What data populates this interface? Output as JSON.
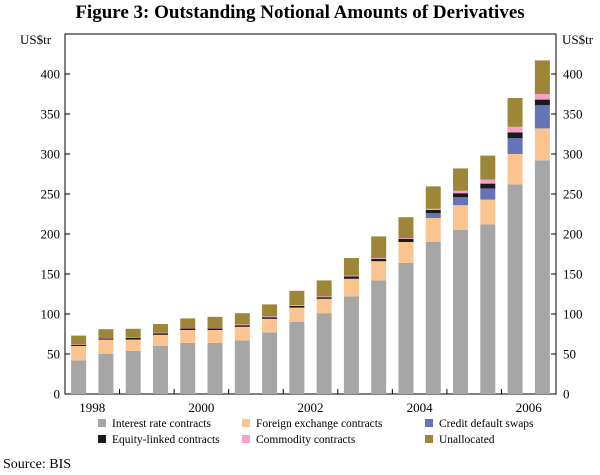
{
  "chart_data": {
    "type": "bar",
    "stacked": true,
    "title": "Figure 3: Outstanding Notional Amounts of Derivatives",
    "ylabel_left": "US$tr",
    "ylabel_right": "US$tr",
    "ylim": [
      0,
      450
    ],
    "yticks": [
      0,
      50,
      100,
      150,
      200,
      250,
      300,
      350,
      400
    ],
    "x_tick_labels": [
      "1998",
      "2000",
      "2002",
      "2004",
      "2006"
    ],
    "periods": [
      "1998 H1",
      "1998 H2",
      "1999 H1",
      "1999 H2",
      "2000 H1",
      "2000 H2",
      "2001 H1",
      "2001 H2",
      "2002 H1",
      "2002 H2",
      "2003 H1",
      "2003 H2",
      "2004 H1",
      "2004 H2",
      "2005 H1",
      "2005 H2",
      "2006 H1",
      "2006 H2"
    ],
    "series": [
      {
        "name": "Interest rate contracts",
        "color": "#a6a6a6",
        "values": [
          42,
          50,
          54,
          60,
          64,
          64,
          67,
          77,
          90,
          101,
          122,
          142,
          164,
          190,
          205,
          212,
          262,
          292
        ]
      },
      {
        "name": "Foreign exchange contracts",
        "color": "#fbc48f",
        "values": [
          18,
          18,
          14,
          14,
          16,
          16,
          17,
          17,
          18,
          18,
          22,
          24,
          26,
          30,
          31,
          31,
          38,
          40
        ]
      },
      {
        "name": "Credit default swaps",
        "color": "#6573b8",
        "values": [
          0,
          0,
          0,
          0,
          0,
          0,
          0,
          0,
          0,
          0,
          0,
          0,
          0,
          6,
          10,
          14,
          20,
          29
        ]
      },
      {
        "name": "Equity-linked contracts",
        "color": "#1a1a1a",
        "values": [
          1.5,
          1.5,
          2,
          2,
          2,
          2,
          2,
          2,
          2,
          2,
          3,
          3,
          4,
          4,
          5,
          6,
          7,
          7
        ]
      },
      {
        "name": "Commodity contracts",
        "color": "#f4a0c8",
        "values": [
          0.5,
          0.5,
          0.5,
          0.5,
          0.5,
          0.5,
          1,
          1,
          1,
          1,
          1,
          1,
          1,
          1.5,
          3,
          5,
          7,
          7
        ]
      },
      {
        "name": "Unallocated",
        "color": "#9d8637",
        "values": [
          11,
          11,
          11,
          11,
          12,
          14,
          14,
          15,
          18,
          20,
          22,
          27,
          26,
          28,
          28,
          30,
          36,
          42
        ]
      }
    ]
  },
  "source": "Source: BIS"
}
